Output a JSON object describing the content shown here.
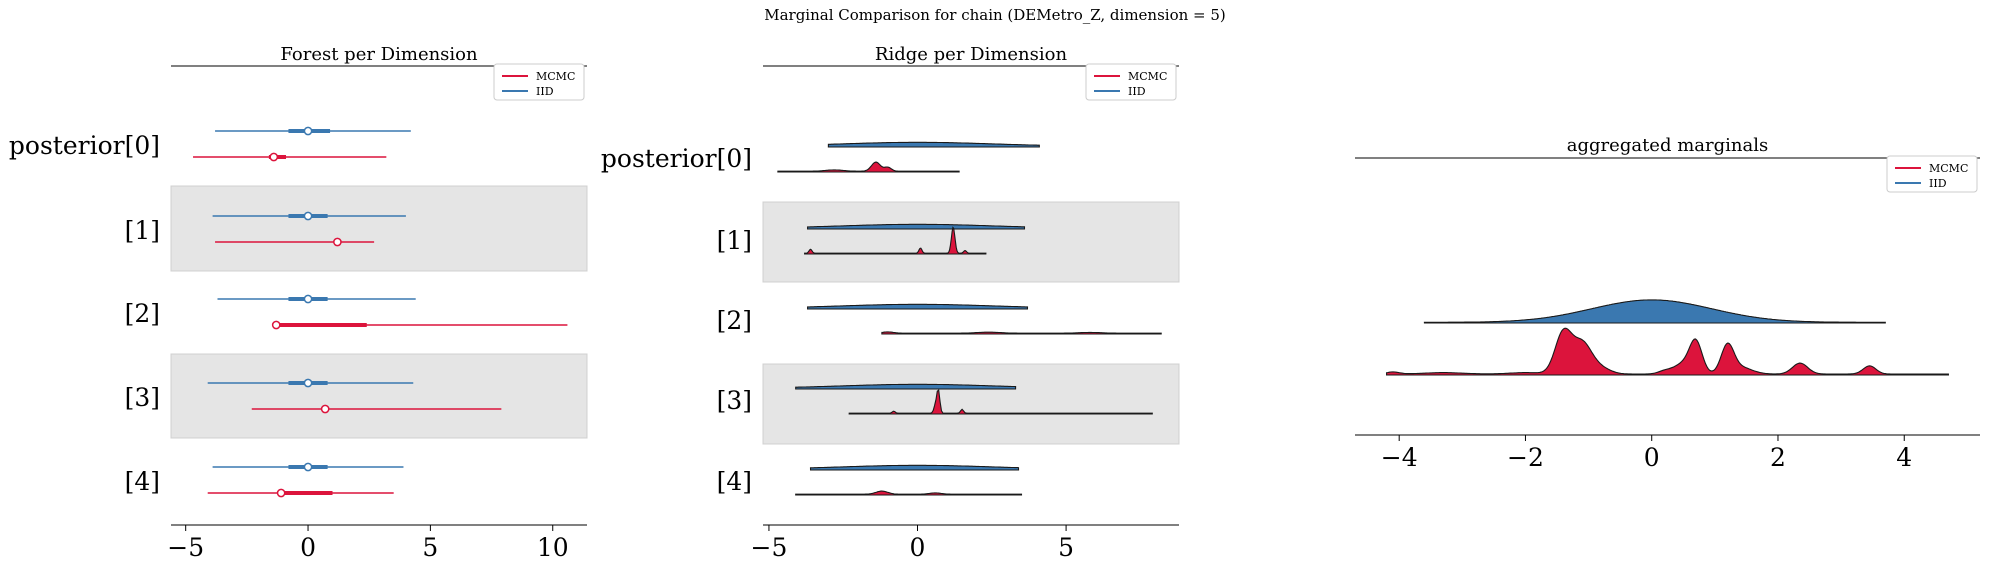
{
  "figure": {
    "suptitle": "Marginal Comparison for chain (DEMetro_Z, dimension = 5)",
    "colors": {
      "mcmc": "#dc143c",
      "iid": "#3a78b0",
      "band": "#e5e5e5",
      "axis": "#000000"
    }
  },
  "chart_data": [
    {
      "type": "forest",
      "title": "Forest per Dimension",
      "xlim": [
        -5.6,
        11.4
      ],
      "xticks": [
        -5,
        0,
        5,
        10
      ],
      "row_labels": [
        "posterior[0]",
        "[1]",
        "[2]",
        "[3]",
        "[4]"
      ],
      "shaded_rows": [
        1,
        3
      ],
      "legend": {
        "position": "top-right",
        "entries": [
          "MCMC",
          "IID"
        ]
      },
      "series": [
        {
          "name": "IID",
          "color": "#3a78b0",
          "rows": [
            {
              "min": -3.8,
              "q25": -0.8,
              "center": 0.0,
              "q75": 0.9,
              "max": 4.2
            },
            {
              "min": -3.9,
              "q25": -0.8,
              "center": 0.0,
              "q75": 0.8,
              "max": 4.0
            },
            {
              "min": -3.7,
              "q25": -0.8,
              "center": 0.0,
              "q75": 0.8,
              "max": 4.4
            },
            {
              "min": -4.1,
              "q25": -0.8,
              "center": 0.0,
              "q75": 0.8,
              "max": 4.3
            },
            {
              "min": -3.9,
              "q25": -0.8,
              "center": 0.0,
              "q75": 0.8,
              "max": 3.9
            }
          ]
        },
        {
          "name": "MCMC",
          "color": "#dc143c",
          "rows": [
            {
              "min": -4.7,
              "q25": -1.6,
              "center": -1.4,
              "q75": -0.9,
              "max": 3.2
            },
            {
              "min": -3.8,
              "q25": 1.1,
              "center": 1.2,
              "q75": 1.3,
              "max": 2.7
            },
            {
              "min": -1.3,
              "q25": -1.2,
              "center": -1.3,
              "q75": 2.4,
              "max": 10.6
            },
            {
              "min": -2.3,
              "q25": 0.6,
              "center": 0.7,
              "q75": 0.8,
              "max": 7.9
            },
            {
              "min": -4.1,
              "q25": -1.2,
              "center": -1.1,
              "q75": 1.0,
              "max": 3.5
            }
          ]
        }
      ]
    },
    {
      "type": "ridge",
      "title": "Ridge per Dimension",
      "xlim": [
        -5.2,
        8.8
      ],
      "xticks": [
        -5,
        0,
        5
      ],
      "row_labels": [
        "posterior[0]",
        "[1]",
        "[2]",
        "[3]",
        "[4]"
      ],
      "shaded_rows": [
        1,
        3
      ],
      "legend": {
        "position": "top-right",
        "entries": [
          "MCMC",
          "IID"
        ]
      },
      "series": [
        {
          "name": "IID",
          "color": "#3a78b0",
          "rows": [
            {
              "range": [
                -3.0,
                4.1
              ],
              "peaks": [
                [
                  0.0,
                  2.5,
                  0.15
                ]
              ]
            },
            {
              "range": [
                -3.7,
                3.6
              ],
              "peaks": [
                [
                  0.0,
                  2.5,
                  0.15
                ]
              ]
            },
            {
              "range": [
                -3.7,
                3.7
              ],
              "peaks": [
                [
                  0.0,
                  2.5,
                  0.15
                ]
              ]
            },
            {
              "range": [
                -4.1,
                3.3
              ],
              "peaks": [
                [
                  0.0,
                  2.5,
                  0.15
                ]
              ]
            },
            {
              "range": [
                -3.6,
                3.4
              ],
              "peaks": [
                [
                  0.0,
                  2.5,
                  0.15
                ]
              ]
            }
          ]
        },
        {
          "name": "MCMC",
          "color": "#dc143c",
          "rows": [
            {
              "range": [
                -4.7,
                1.4
              ],
              "peaks": [
                [
                  -1.4,
                  0.15,
                  0.35
                ],
                [
                  -1.0,
                  0.12,
                  0.15
                ],
                [
                  -2.8,
                  0.3,
                  0.05
                ]
              ]
            },
            {
              "range": [
                -3.8,
                2.3
              ],
              "peaks": [
                [
                  1.2,
                  0.06,
                  1.0
                ],
                [
                  0.1,
                  0.05,
                  0.2
                ],
                [
                  -3.6,
                  0.05,
                  0.15
                ],
                [
                  1.6,
                  0.05,
                  0.1
                ]
              ]
            },
            {
              "range": [
                -1.2,
                8.2
              ],
              "peaks": [
                [
                  -1.0,
                  0.2,
                  0.05
                ],
                [
                  2.4,
                  0.4,
                  0.04
                ],
                [
                  5.8,
                  0.4,
                  0.03
                ]
              ]
            },
            {
              "range": [
                -2.3,
                7.9
              ],
              "peaks": [
                [
                  0.7,
                  0.05,
                  0.9
                ],
                [
                  0.6,
                  0.05,
                  0.3
                ],
                [
                  1.5,
                  0.05,
                  0.15
                ],
                [
                  -0.8,
                  0.05,
                  0.08
                ]
              ]
            },
            {
              "range": [
                -4.1,
                3.5
              ],
              "peaks": [
                [
                  -1.2,
                  0.2,
                  0.12
                ],
                [
                  0.6,
                  0.2,
                  0.05
                ]
              ]
            }
          ]
        }
      ]
    },
    {
      "type": "ridge",
      "title": "aggregated marginals",
      "xlim": [
        -4.7,
        5.2
      ],
      "xticks": [
        -4,
        -2,
        0,
        2,
        4
      ],
      "legend": {
        "position": "top-right",
        "entries": [
          "MCMC",
          "IID"
        ]
      },
      "series": [
        {
          "name": "IID",
          "color": "#3a78b0",
          "range": [
            -3.6,
            3.7
          ],
          "peaks": [
            [
              0.0,
              0.95,
              0.33
            ]
          ]
        },
        {
          "name": "MCMC",
          "color": "#dc143c",
          "range": [
            -4.2,
            4.7
          ],
          "peaks": [
            [
              -1.4,
              0.13,
              0.6
            ],
            [
              -1.1,
              0.15,
              0.45
            ],
            [
              -0.8,
              0.15,
              0.08
            ],
            [
              0.7,
              0.1,
              0.45
            ],
            [
              0.5,
              0.15,
              0.15
            ],
            [
              1.2,
              0.1,
              0.4
            ],
            [
              1.4,
              0.18,
              0.1
            ],
            [
              2.35,
              0.12,
              0.16
            ],
            [
              3.45,
              0.1,
              0.12
            ],
            [
              -3.3,
              0.3,
              0.02
            ],
            [
              -2.0,
              0.25,
              0.02
            ],
            [
              0.2,
              0.1,
              0.04
            ],
            [
              -4.1,
              0.1,
              0.03
            ]
          ],
          "base": 0.015
        }
      ]
    }
  ]
}
